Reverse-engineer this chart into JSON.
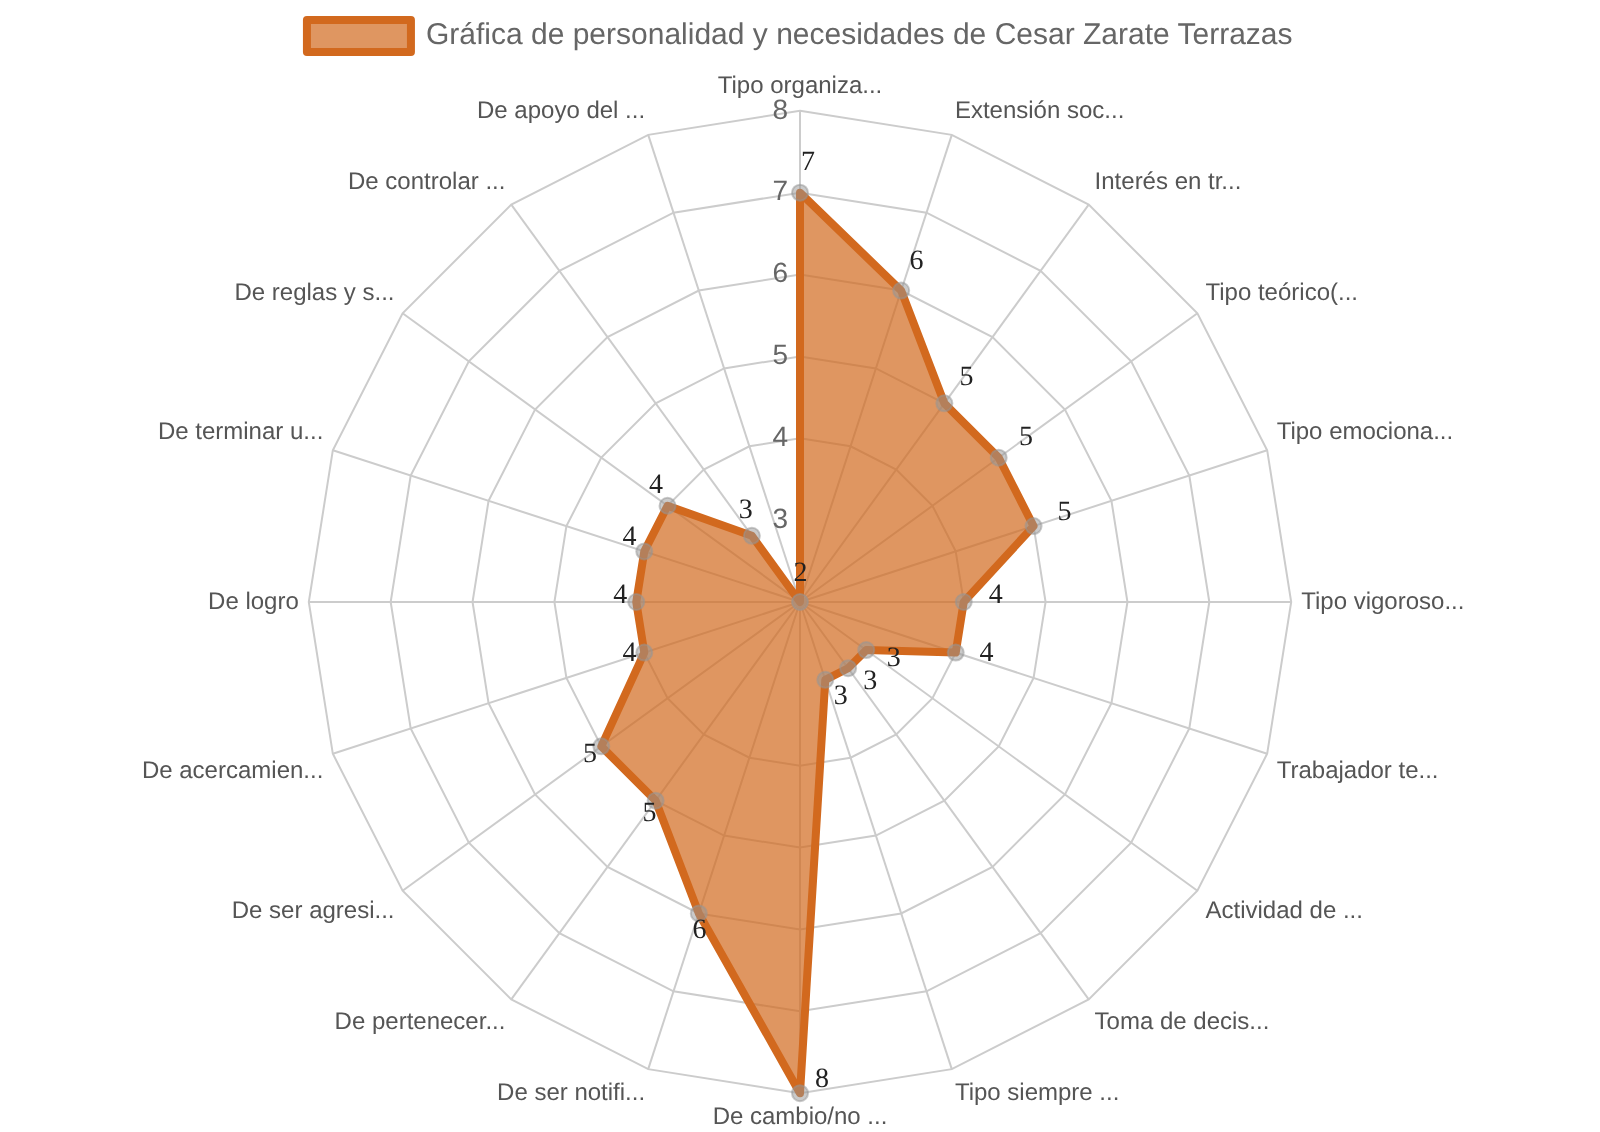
{
  "chart_data": {
    "type": "radar",
    "categories": [
      "Tipo organiza...",
      "Extensión soc...",
      "Interés en tr...",
      "Tipo teórico(...",
      "Tipo emociona...",
      "Tipo vigoroso...",
      "Trabajador te...",
      "Actividad de ...",
      "Toma de decis...",
      "Tipo siempre ...",
      "De cambio/no ...",
      "De ser notifi...",
      "De pertenecer...",
      "De ser agresi...",
      "De acercamien...",
      "De logro",
      "De terminar u...",
      "De reglas y s...",
      "De controlar ...",
      "De apoyo del ..."
    ],
    "series": [
      {
        "name": "Gráfica de personalidad y necesidades de Cesar Zarate Terrazas",
        "color": "#d2691e",
        "values": [
          7,
          6,
          5,
          5,
          5,
          4,
          4,
          3,
          3,
          3,
          8,
          6,
          5,
          5,
          4,
          4,
          4,
          4,
          3,
          2
        ]
      }
    ],
    "ylim": [
      2,
      8
    ],
    "yticks": [
      3,
      4,
      5,
      6,
      7,
      8
    ],
    "grid": true,
    "legend": "top",
    "data_labels": true,
    "marker": "circle"
  }
}
